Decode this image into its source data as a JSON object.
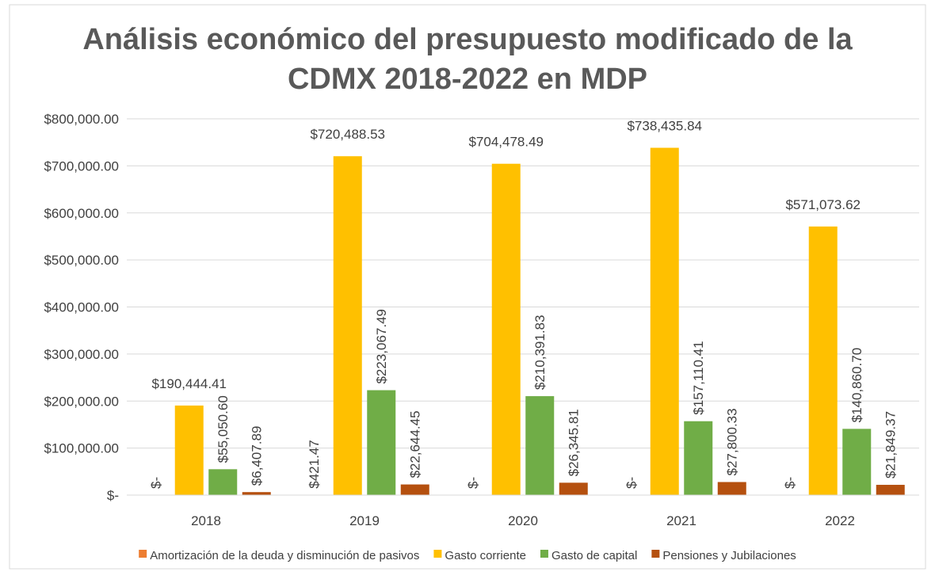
{
  "chart_data": {
    "type": "bar",
    "title": [
      "Análisis económico del presupuesto modificado de la",
      "CDMX  2018-2022 en MDP"
    ],
    "categories": [
      "2018",
      "2019",
      "2020",
      "2021",
      "2022"
    ],
    "series": [
      {
        "name": "Amortización de la deuda y disminución de pasivos",
        "color": "#ed7d31",
        "values": [
          0,
          421.47,
          0,
          0,
          0
        ],
        "value_labels": [
          "$-",
          "$421.47",
          "$-",
          "$-",
          "$-"
        ]
      },
      {
        "name": "Gasto corriente",
        "color": "#ffc000",
        "values": [
          190444.41,
          720488.53,
          704478.49,
          738435.84,
          571073.62
        ],
        "value_labels": [
          "$190,444.41",
          "$720,488.53",
          "$704,478.49",
          "$738,435.84",
          "$571,073.62"
        ]
      },
      {
        "name": "Gasto de capital",
        "color": "#70ad47",
        "values": [
          55050.6,
          223067.49,
          210391.83,
          157110.41,
          140860.7
        ],
        "value_labels": [
          "$55,050.60",
          "$223,067.49",
          "$210,391.83",
          "$157,110.41",
          "$140,860.70"
        ]
      },
      {
        "name": "Pensiones y Jubilaciones",
        "color": "#b5500f",
        "values": [
          6407.89,
          22644.45,
          26345.81,
          27800.33,
          21849.37
        ],
        "value_labels": [
          "$6,407.89",
          "$22,644.45",
          "$26,345.81",
          "$27,800.33",
          "$21,849.37"
        ]
      }
    ],
    "ylim": [
      0,
      800000
    ],
    "yticks": [
      {
        "value": 0,
        "label": "$-"
      },
      {
        "value": 100000,
        "label": "$100,000.00"
      },
      {
        "value": 200000,
        "label": "$200,000.00"
      },
      {
        "value": 300000,
        "label": "$300,000.00"
      },
      {
        "value": 400000,
        "label": "$400,000.00"
      },
      {
        "value": 500000,
        "label": "$500,000.00"
      },
      {
        "value": 600000,
        "label": "$600,000.00"
      },
      {
        "value": 700000,
        "label": "$700,000.00"
      },
      {
        "value": 800000,
        "label": "$800,000.00"
      }
    ],
    "grid": true,
    "legend": "bottom"
  }
}
